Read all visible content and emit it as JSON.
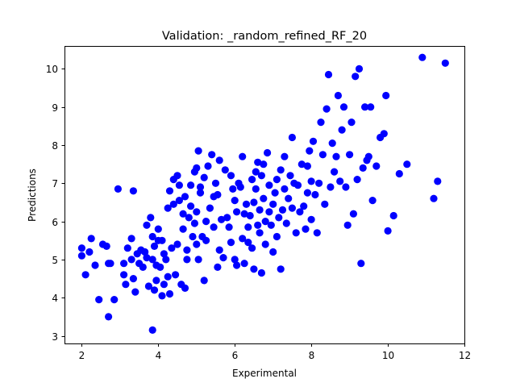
{
  "chart_data": {
    "type": "scatter",
    "title": "Validation: _random_refined_RF_20",
    "xlabel": "Experimental",
    "ylabel": "Predictions",
    "xlim": [
      1.55,
      12
    ],
    "ylim": [
      2.8,
      10.6
    ],
    "xticks": [
      2,
      4,
      6,
      8,
      10,
      12
    ],
    "yticks": [
      3,
      4,
      5,
      6,
      7,
      8,
      9,
      10
    ],
    "grid": false,
    "legend": "none",
    "marker_color": "#0000ff",
    "points": [
      [
        2.0,
        5.1
      ],
      [
        2.0,
        5.3
      ],
      [
        2.1,
        4.6
      ],
      [
        2.2,
        5.2
      ],
      [
        2.25,
        5.55
      ],
      [
        2.35,
        4.85
      ],
      [
        2.45,
        3.95
      ],
      [
        2.55,
        5.4
      ],
      [
        2.65,
        5.35
      ],
      [
        2.7,
        4.9
      ],
      [
        2.7,
        3.5
      ],
      [
        2.75,
        4.9
      ],
      [
        2.85,
        3.95
      ],
      [
        2.95,
        6.85
      ],
      [
        3.1,
        4.9
      ],
      [
        3.1,
        4.6
      ],
      [
        3.15,
        4.35
      ],
      [
        3.2,
        5.3
      ],
      [
        3.3,
        5.55
      ],
      [
        3.3,
        5.0
      ],
      [
        3.35,
        4.5
      ],
      [
        3.35,
        6.8
      ],
      [
        3.4,
        4.15
      ],
      [
        3.45,
        5.15
      ],
      [
        3.5,
        4.9
      ],
      [
        3.55,
        5.25
      ],
      [
        3.6,
        4.8
      ],
      [
        3.65,
        5.2
      ],
      [
        3.7,
        5.05
      ],
      [
        3.7,
        5.9
      ],
      [
        3.75,
        4.3
      ],
      [
        3.8,
        6.1
      ],
      [
        3.85,
        5.6
      ],
      [
        3.85,
        5.0
      ],
      [
        3.85,
        3.15
      ],
      [
        3.9,
        4.2
      ],
      [
        3.9,
        5.35
      ],
      [
        3.95,
        4.85
      ],
      [
        3.95,
        4.45
      ],
      [
        4.0,
        5.5
      ],
      [
        4.0,
        5.8
      ],
      [
        4.05,
        4.8
      ],
      [
        4.1,
        4.05
      ],
      [
        4.1,
        5.5
      ],
      [
        4.15,
        5.15
      ],
      [
        4.15,
        4.35
      ],
      [
        4.2,
        5.0
      ],
      [
        4.25,
        4.55
      ],
      [
        4.25,
        6.35
      ],
      [
        4.3,
        4.1
      ],
      [
        4.3,
        6.8
      ],
      [
        4.35,
        5.3
      ],
      [
        4.4,
        6.45
      ],
      [
        4.4,
        7.1
      ],
      [
        4.45,
        4.6
      ],
      [
        4.5,
        7.2
      ],
      [
        4.5,
        5.4
      ],
      [
        4.55,
        6.95
      ],
      [
        4.55,
        6.55
      ],
      [
        4.6,
        4.35
      ],
      [
        4.65,
        6.2
      ],
      [
        4.65,
        5.8
      ],
      [
        4.7,
        4.25
      ],
      [
        4.7,
        6.65
      ],
      [
        4.75,
        5.25
      ],
      [
        4.75,
        5.0
      ],
      [
        4.8,
        6.1
      ],
      [
        4.85,
        6.95
      ],
      [
        4.85,
        6.4
      ],
      [
        4.9,
        5.6
      ],
      [
        4.95,
        5.95
      ],
      [
        4.95,
        7.3
      ],
      [
        5.0,
        7.4
      ],
      [
        5.0,
        6.25
      ],
      [
        5.0,
        5.4
      ],
      [
        5.05,
        7.85
      ],
      [
        5.05,
        5.0
      ],
      [
        5.1,
        6.9
      ],
      [
        5.1,
        6.75
      ],
      [
        5.15,
        5.6
      ],
      [
        5.2,
        4.45
      ],
      [
        5.2,
        7.15
      ],
      [
        5.25,
        5.5
      ],
      [
        5.25,
        6.0
      ],
      [
        5.3,
        7.45
      ],
      [
        5.35,
        6.35
      ],
      [
        5.4,
        7.75
      ],
      [
        5.45,
        6.65
      ],
      [
        5.45,
        5.85
      ],
      [
        5.5,
        7.0
      ],
      [
        5.55,
        4.8
      ],
      [
        5.55,
        6.7
      ],
      [
        5.6,
        7.6
      ],
      [
        5.6,
        5.25
      ],
      [
        5.65,
        6.05
      ],
      [
        5.7,
        5.05
      ],
      [
        5.75,
        7.35
      ],
      [
        5.8,
        6.1
      ],
      [
        5.85,
        5.85
      ],
      [
        5.9,
        5.45
      ],
      [
        5.9,
        7.2
      ],
      [
        5.95,
        6.85
      ],
      [
        6.0,
        6.55
      ],
      [
        6.0,
        5.0
      ],
      [
        6.05,
        6.25
      ],
      [
        6.05,
        4.85
      ],
      [
        6.1,
        7.0
      ],
      [
        6.15,
        6.9
      ],
      [
        6.2,
        5.55
      ],
      [
        6.2,
        7.7
      ],
      [
        6.25,
        6.2
      ],
      [
        6.25,
        4.9
      ],
      [
        6.3,
        6.45
      ],
      [
        6.35,
        5.85
      ],
      [
        6.35,
        5.45
      ],
      [
        6.4,
        6.15
      ],
      [
        6.45,
        7.1
      ],
      [
        6.45,
        5.3
      ],
      [
        6.5,
        6.5
      ],
      [
        6.5,
        4.75
      ],
      [
        6.55,
        6.85
      ],
      [
        6.55,
        7.3
      ],
      [
        6.6,
        5.9
      ],
      [
        6.6,
        7.55
      ],
      [
        6.65,
        6.3
      ],
      [
        6.65,
        5.7
      ],
      [
        6.7,
        4.65
      ],
      [
        6.7,
        7.2
      ],
      [
        6.75,
        6.6
      ],
      [
        6.75,
        7.5
      ],
      [
        6.8,
        5.4
      ],
      [
        6.8,
        6.0
      ],
      [
        6.85,
        7.8
      ],
      [
        6.9,
        6.25
      ],
      [
        6.9,
        6.95
      ],
      [
        6.95,
        5.9
      ],
      [
        7.0,
        6.45
      ],
      [
        7.0,
        5.2
      ],
      [
        7.05,
        6.75
      ],
      [
        7.1,
        7.1
      ],
      [
        7.1,
        5.6
      ],
      [
        7.15,
        6.1
      ],
      [
        7.2,
        4.75
      ],
      [
        7.2,
        7.35
      ],
      [
        7.25,
        6.3
      ],
      [
        7.3,
        6.85
      ],
      [
        7.3,
        7.7
      ],
      [
        7.35,
        5.95
      ],
      [
        7.4,
        6.6
      ],
      [
        7.45,
        7.2
      ],
      [
        7.5,
        8.2
      ],
      [
        7.5,
        6.35
      ],
      [
        7.55,
        7.0
      ],
      [
        7.6,
        5.7
      ],
      [
        7.65,
        6.95
      ],
      [
        7.7,
        6.25
      ],
      [
        7.75,
        7.5
      ],
      [
        7.8,
        6.4
      ],
      [
        7.85,
        5.8
      ],
      [
        7.9,
        7.45
      ],
      [
        7.9,
        6.75
      ],
      [
        7.95,
        7.85
      ],
      [
        8.0,
        6.05
      ],
      [
        8.0,
        7.05
      ],
      [
        8.05,
        8.1
      ],
      [
        8.1,
        6.7
      ],
      [
        8.15,
        5.7
      ],
      [
        8.2,
        7.0
      ],
      [
        8.25,
        8.6
      ],
      [
        8.3,
        7.75
      ],
      [
        8.35,
        6.45
      ],
      [
        8.4,
        8.95
      ],
      [
        8.45,
        9.85
      ],
      [
        8.5,
        6.9
      ],
      [
        8.55,
        8.05
      ],
      [
        8.6,
        7.3
      ],
      [
        8.65,
        7.7
      ],
      [
        8.7,
        9.3
      ],
      [
        8.75,
        7.05
      ],
      [
        8.8,
        8.4
      ],
      [
        8.85,
        9.0
      ],
      [
        8.9,
        6.9
      ],
      [
        8.95,
        5.9
      ],
      [
        9.0,
        7.75
      ],
      [
        9.05,
        8.6
      ],
      [
        9.1,
        6.2
      ],
      [
        9.15,
        9.8
      ],
      [
        9.2,
        7.1
      ],
      [
        9.25,
        10.0
      ],
      [
        9.3,
        4.9
      ],
      [
        9.35,
        7.4
      ],
      [
        9.4,
        9.0
      ],
      [
        9.45,
        7.6
      ],
      [
        9.5,
        7.7
      ],
      [
        9.55,
        9.0
      ],
      [
        9.6,
        6.55
      ],
      [
        9.7,
        7.45
      ],
      [
        9.8,
        8.2
      ],
      [
        9.9,
        8.3
      ],
      [
        9.95,
        9.3
      ],
      [
        10.0,
        5.75
      ],
      [
        10.15,
        6.15
      ],
      [
        10.3,
        7.25
      ],
      [
        10.5,
        7.5
      ],
      [
        10.9,
        10.3
      ],
      [
        11.2,
        6.6
      ],
      [
        11.3,
        7.05
      ],
      [
        11.5,
        10.15
      ]
    ]
  }
}
